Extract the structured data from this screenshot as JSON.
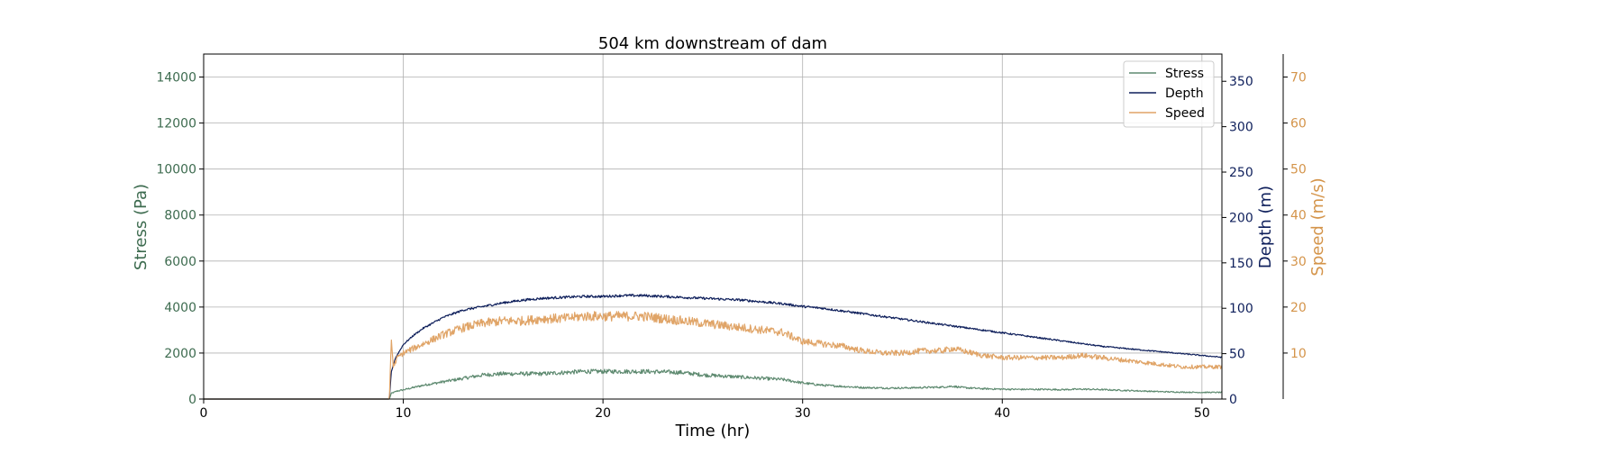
{
  "chart_data": {
    "type": "line",
    "title": "504 km downstream of dam",
    "xlabel": "Time (hr)",
    "xlim": [
      0,
      51
    ],
    "x_ticks": [
      0,
      10,
      20,
      30,
      40,
      50
    ],
    "grid": true,
    "legend_position": "top-right",
    "axes": {
      "stress": {
        "label": "Stress (Pa)",
        "ylim": [
          0,
          15000
        ],
        "ticks": [
          0,
          2000,
          4000,
          6000,
          8000,
          10000,
          12000,
          14000
        ],
        "color": "#3d6b4f",
        "side": "left"
      },
      "depth": {
        "label": "Depth (m)",
        "ylim": [
          0,
          380
        ],
        "ticks": [
          0,
          50,
          100,
          150,
          200,
          250,
          300,
          350
        ],
        "color": "#0e1f5b",
        "side": "right"
      },
      "speed": {
        "label": "Speed (m/s)",
        "ylim": [
          0,
          75
        ],
        "ticks": [
          10,
          20,
          30,
          40,
          50,
          60,
          70
        ],
        "color": "#d4944a",
        "side": "right-offset"
      }
    },
    "series": [
      {
        "name": "Stress",
        "axis": "stress",
        "color": "#5e8a70",
        "noise": 0.08,
        "x": [
          0,
          9.3,
          9.4,
          9.7,
          10,
          11,
          12,
          13,
          14,
          15,
          16,
          17,
          18,
          19,
          20,
          21,
          22,
          23,
          24,
          25,
          26,
          27,
          28,
          29,
          30,
          31,
          32,
          33,
          34,
          35,
          36,
          37,
          37.5,
          38,
          39,
          40,
          41,
          42,
          43,
          44,
          45,
          46,
          47,
          48,
          49,
          50,
          51
        ],
        "y": [
          0,
          0,
          250,
          350,
          400,
          600,
          750,
          900,
          1050,
          1100,
          1100,
          1100,
          1150,
          1200,
          1200,
          1200,
          1200,
          1180,
          1150,
          1050,
          1000,
          950,
          900,
          850,
          700,
          600,
          550,
          500,
          480,
          480,
          500,
          520,
          560,
          500,
          450,
          430,
          420,
          420,
          410,
          430,
          410,
          380,
          350,
          320,
          300,
          290,
          290
        ]
      },
      {
        "name": "Depth",
        "axis": "depth",
        "color": "#0e1f5b",
        "noise": 0.012,
        "x": [
          0,
          9.3,
          9.4,
          9.6,
          10,
          10.5,
          11,
          12,
          13,
          14,
          15,
          16,
          17,
          18,
          19,
          20,
          21,
          22,
          23,
          24,
          25,
          26,
          27,
          28,
          29,
          30,
          31,
          32,
          33,
          34,
          35,
          36,
          37,
          38,
          39,
          40,
          41,
          42,
          43,
          44,
          45,
          46,
          47,
          48,
          49,
          50,
          51
        ],
        "y": [
          0,
          0,
          30,
          45,
          60,
          70,
          78,
          90,
          98,
          102,
          106,
          109,
          111,
          112,
          113,
          113,
          114,
          114,
          113,
          112,
          111,
          110,
          109,
          107,
          105,
          102,
          100,
          97,
          94,
          91,
          88,
          85,
          82,
          79,
          76,
          73,
          70,
          67,
          64,
          61,
          58,
          56,
          54,
          52,
          50,
          48,
          46
        ]
      },
      {
        "name": "Speed",
        "axis": "speed",
        "color": "#e0a467",
        "noise": 0.06,
        "x": [
          0,
          9.3,
          9.4,
          9.5,
          9.7,
          10,
          11,
          12,
          13,
          14,
          15,
          16,
          17,
          18,
          19,
          20,
          21,
          22,
          23,
          24,
          25,
          26,
          27,
          28,
          29,
          29.5,
          30,
          31,
          32,
          33,
          34,
          35,
          36,
          37,
          37.5,
          38,
          39,
          40,
          41,
          42,
          43,
          44,
          45,
          46,
          47,
          48,
          49,
          50,
          51
        ],
        "y": [
          0,
          0,
          13,
          7,
          9,
          10,
          12,
          14,
          15.5,
          16.5,
          17,
          17,
          17.5,
          17.5,
          18,
          18,
          18,
          18,
          17.5,
          17,
          16.5,
          16,
          15.5,
          15,
          14.5,
          13.5,
          12.5,
          12,
          11.5,
          10.5,
          10,
          10,
          10.5,
          10.5,
          11,
          10.5,
          9.5,
          9,
          9,
          9,
          9,
          9.5,
          9,
          8.5,
          8,
          7.5,
          7,
          7,
          7
        ]
      }
    ]
  }
}
